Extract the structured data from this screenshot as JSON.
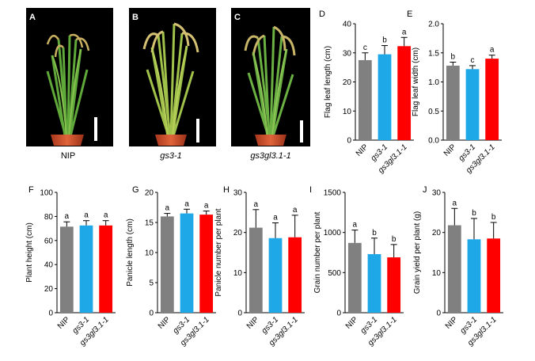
{
  "figure": {
    "photo_panels": [
      {
        "letter": "A",
        "caption": "NIP",
        "caption_italic": false
      },
      {
        "letter": "B",
        "caption": "gs3-1",
        "caption_italic": true
      },
      {
        "letter": "C",
        "caption": "gs3gl3.1-1",
        "caption_italic": true
      }
    ],
    "colors": {
      "NIP": "#808080",
      "gs3-1": "#1ea8e8",
      "gs3gl3.1-1": "#ff0000",
      "photo_background": "#000000"
    }
  },
  "chart_data": [
    {
      "panel": "D",
      "type": "bar",
      "categories": [
        "NIP",
        "gs3-1",
        "gs3gl3.1-1"
      ],
      "values": [
        27.5,
        29.5,
        32.3
      ],
      "errors": [
        2.5,
        3.0,
        3.0
      ],
      "sig_letters": [
        "c",
        "b",
        "a"
      ],
      "ylabel": "Flag leaf length (cm)",
      "ylim": [
        0,
        40
      ],
      "yticks": [
        0,
        10,
        20,
        30,
        40
      ],
      "grid": false,
      "legend": "none"
    },
    {
      "panel": "E",
      "type": "bar",
      "categories": [
        "NIP",
        "gs3-1",
        "gs3gl3.1-1"
      ],
      "values": [
        1.28,
        1.22,
        1.4
      ],
      "errors": [
        0.06,
        0.06,
        0.06
      ],
      "sig_letters": [
        "b",
        "c",
        "a"
      ],
      "ylabel": "Flag leaf width (cm)",
      "ylim": [
        0,
        2.0
      ],
      "yticks": [
        "0.0",
        "0.5",
        "1.0",
        "1.5",
        "2.0"
      ],
      "grid": false,
      "legend": "none"
    },
    {
      "panel": "F",
      "type": "bar",
      "categories": [
        "NIP",
        "gs3-1",
        "gs3gl3.1-1"
      ],
      "values": [
        71.5,
        72.5,
        72.5
      ],
      "errors": [
        4,
        4,
        4
      ],
      "sig_letters": [
        "a",
        "a",
        "a"
      ],
      "ylabel": "Plant height (cm)",
      "ylim": [
        0,
        100
      ],
      "yticks": [
        0,
        20,
        40,
        60,
        80,
        100
      ],
      "grid": false,
      "legend": "none"
    },
    {
      "panel": "G",
      "type": "bar",
      "categories": [
        "NIP",
        "gs3-1",
        "gs3gl3.1-1"
      ],
      "values": [
        16.0,
        16.5,
        16.3
      ],
      "errors": [
        0.5,
        0.7,
        0.6
      ],
      "sig_letters": [
        "a",
        "a",
        "a"
      ],
      "ylabel": "Panicle length (cm)",
      "ylim": [
        0,
        20
      ],
      "yticks": [
        0,
        5,
        10,
        15,
        20
      ],
      "grid": false,
      "legend": "none"
    },
    {
      "panel": "H",
      "type": "bar",
      "categories": [
        "NIP",
        "gs3-1",
        "gs3gl3.1-1"
      ],
      "values": [
        21.2,
        18.6,
        18.8
      ],
      "errors": [
        4.5,
        3.8,
        5.5
      ],
      "sig_letters": [
        "a",
        "a",
        "a"
      ],
      "ylabel": "Panicle number per plant",
      "ylim": [
        0,
        30
      ],
      "yticks": [
        0,
        10,
        20,
        30
      ],
      "grid": false,
      "legend": "none"
    },
    {
      "panel": "I",
      "type": "bar",
      "categories": [
        "NIP",
        "gs3-1",
        "gs3gl3.1-1"
      ],
      "values": [
        870,
        730,
        690
      ],
      "errors": [
        160,
        200,
        160
      ],
      "sig_letters": [
        "a",
        "b",
        "b"
      ],
      "ylabel": "Grain number per plant",
      "ylim": [
        0,
        1500
      ],
      "yticks": [
        0,
        500,
        1000,
        1500
      ],
      "grid": false,
      "legend": "none"
    },
    {
      "panel": "J",
      "type": "bar",
      "categories": [
        "NIP",
        "gs3-1",
        "gs3gl3.1-1"
      ],
      "values": [
        21.8,
        18.3,
        18.5
      ],
      "errors": [
        4.2,
        5.2,
        4.0
      ],
      "sig_letters": [
        "a",
        "b",
        "b"
      ],
      "ylabel": "Grain yield per plant (g)",
      "ylim": [
        0,
        30
      ],
      "yticks": [
        0,
        10,
        20,
        30
      ],
      "grid": false,
      "legend": "none"
    }
  ]
}
